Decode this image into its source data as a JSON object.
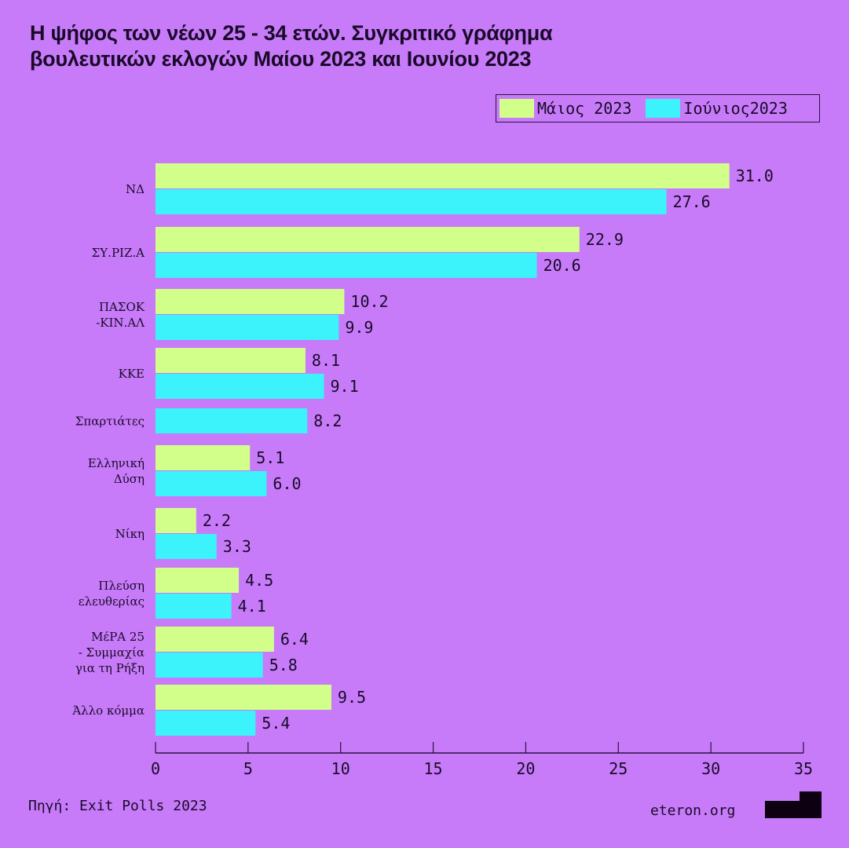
{
  "chart_data": {
    "type": "bar",
    "orientation": "horizontal",
    "title": "Η ψήφος των νέων 25 - 34 ετών. Συγκριτικό γράφημα βουλευτικών εκλογών Μαίου 2023 και Ιουνίου 2023",
    "title_lines": [
      "Η ψήφος των νέων 25 - 34 ετών. Συγκριτικό γράφημα",
      "βουλευτικών εκλογών Μαίου 2023 και Ιουνίου 2023"
    ],
    "categories": [
      [
        "ΝΔ"
      ],
      [
        "ΣΥ.ΡΙΖ.Α"
      ],
      [
        "ΠΑΣΟΚ",
        "-ΚΙΝ.ΑΛ"
      ],
      [
        "ΚΚΕ"
      ],
      [
        "Σπαρτιάτες"
      ],
      [
        "Ελληνική",
        "Δύση"
      ],
      [
        "Νίκη"
      ],
      [
        "Πλεύση",
        "ελευθερίας"
      ],
      [
        "ΜέΡΑ 25",
        "-  Συμμαχία",
        "για τη Ρήξη"
      ],
      [
        "Άλλο κόμμα"
      ]
    ],
    "series": [
      {
        "name": "Μάιος 2023",
        "color": "#d2ff8a",
        "values": [
          31.0,
          22.9,
          10.2,
          8.1,
          null,
          5.1,
          2.2,
          4.5,
          6.4,
          9.5
        ]
      },
      {
        "name": "Ιούνιος2023",
        "color": "#3cf2fb",
        "values": [
          27.6,
          20.6,
          9.9,
          9.1,
          8.2,
          6.0,
          3.3,
          4.1,
          5.8,
          5.4
        ]
      }
    ],
    "xlim": [
      0,
      35
    ],
    "xticks": [
      0,
      5,
      10,
      15,
      20,
      25,
      30,
      35
    ],
    "grid": false,
    "legend_position": "top-right",
    "background": "#c77bf8"
  },
  "footer": {
    "source": "Πηγή: Exit Polls 2023",
    "brand": "eteron.org"
  }
}
